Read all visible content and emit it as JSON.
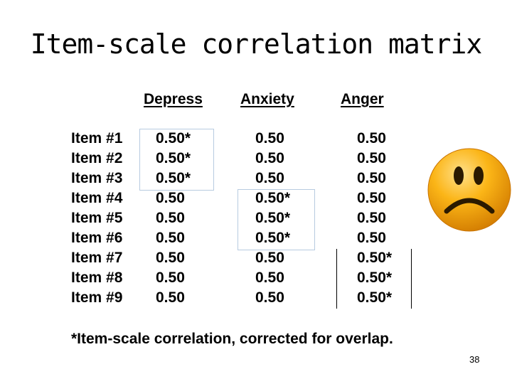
{
  "slide": {
    "title": "Item-scale correlation matrix",
    "page_number": "38",
    "footnote": "*Item-scale correlation, corrected for overlap."
  },
  "table": {
    "columns": [
      "Depress",
      "Anxiety",
      "Anger"
    ],
    "rows": [
      {
        "label": "Item #1",
        "values": [
          "0.50*",
          "0.50",
          "0.50"
        ]
      },
      {
        "label": "Item #2",
        "values": [
          "0.50*",
          "0.50",
          "0.50"
        ]
      },
      {
        "label": "Item #3",
        "values": [
          "0.50*",
          "0.50",
          "0.50"
        ]
      },
      {
        "label": "Item #4",
        "values": [
          "0.50",
          "0.50*",
          "0.50"
        ]
      },
      {
        "label": "Item #5",
        "values": [
          "0.50",
          "0.50*",
          "0.50"
        ]
      },
      {
        "label": "Item #6",
        "values": [
          "0.50",
          "0.50*",
          "0.50"
        ]
      },
      {
        "label": "Item #7",
        "values": [
          "0.50",
          "0.50",
          "0.50*"
        ]
      },
      {
        "label": "Item #8",
        "values": [
          "0.50",
          "0.50",
          "0.50*"
        ]
      },
      {
        "label": "Item #9",
        "values": [
          "0.50",
          "0.50",
          "0.50*"
        ]
      }
    ]
  },
  "decoration": {
    "icon": "sad-face-icon",
    "face_color": "#f5a300",
    "box_color": "#b7cbe0"
  }
}
